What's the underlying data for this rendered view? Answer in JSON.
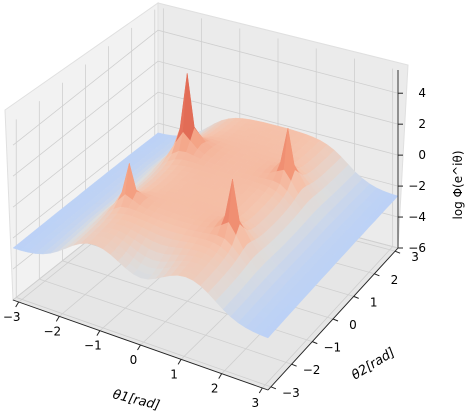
{
  "chart_data": {
    "type": "surface3d",
    "colormap": "coolwarm",
    "title": "",
    "xlabel": "θ1[rad]",
    "ylabel": "θ2[rad]",
    "zlabel": "log Φ(e^iθ)",
    "x_ticks": [
      -3,
      -2,
      -1,
      0,
      1,
      2,
      3
    ],
    "y_ticks": [
      -3,
      -2,
      -1,
      0,
      1,
      2,
      3
    ],
    "z_ticks": [
      -6,
      -4,
      -2,
      0,
      2,
      4
    ],
    "xlim": [
      -3.14,
      3.14
    ],
    "ylim": [
      -3.14,
      3.14
    ],
    "zlim": [
      -6,
      5.5
    ],
    "grid": true,
    "surface_features": {
      "spike_peaks": [
        {
          "theta1": -1.3,
          "theta2": 1.3,
          "z": 5.6
        },
        {
          "theta1": 1.3,
          "theta2": -1.3,
          "z": 4.2
        },
        {
          "theta1": 1.3,
          "theta2": 1.3,
          "z": 3.9
        },
        {
          "theta1": -1.3,
          "theta2": -1.3,
          "z": 3.0
        }
      ],
      "global_minimum": {
        "theta1": 0.0,
        "theta2": -3.1,
        "z": -6.0
      },
      "plateau_level": -0.2,
      "outer_edge_level": -3.0
    }
  }
}
